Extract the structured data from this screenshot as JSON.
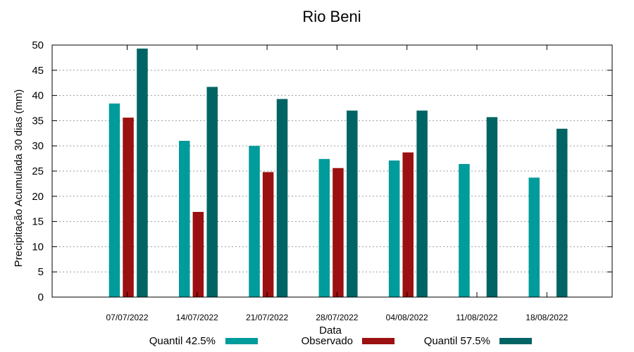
{
  "chart_data": {
    "type": "bar",
    "title": "Rio Beni",
    "xlabel": "Data",
    "ylabel": "Precipitação Acumulada 30 dias (mm)",
    "ylim": [
      0,
      50
    ],
    "yticks": [
      0,
      5,
      10,
      15,
      20,
      25,
      30,
      35,
      40,
      45,
      50
    ],
    "grid": true,
    "legend_position": "bottom",
    "categories": [
      "07/07/2022",
      "14/07/2022",
      "21/07/2022",
      "28/07/2022",
      "04/08/2022",
      "11/08/2022",
      "18/08/2022"
    ],
    "series": [
      {
        "name": "Quantil 42.5%",
        "color": "#009b9b",
        "values": [
          38.4,
          31.0,
          30.0,
          27.4,
          27.1,
          26.4,
          23.7
        ]
      },
      {
        "name": "Observado",
        "color": "#9b1010",
        "values": [
          35.6,
          16.9,
          24.8,
          25.6,
          28.7,
          null,
          null
        ]
      },
      {
        "name": "Quantil 57.5%",
        "color": "#006464",
        "values": [
          49.3,
          41.7,
          39.3,
          37.0,
          37.0,
          35.7,
          33.4
        ]
      }
    ]
  }
}
